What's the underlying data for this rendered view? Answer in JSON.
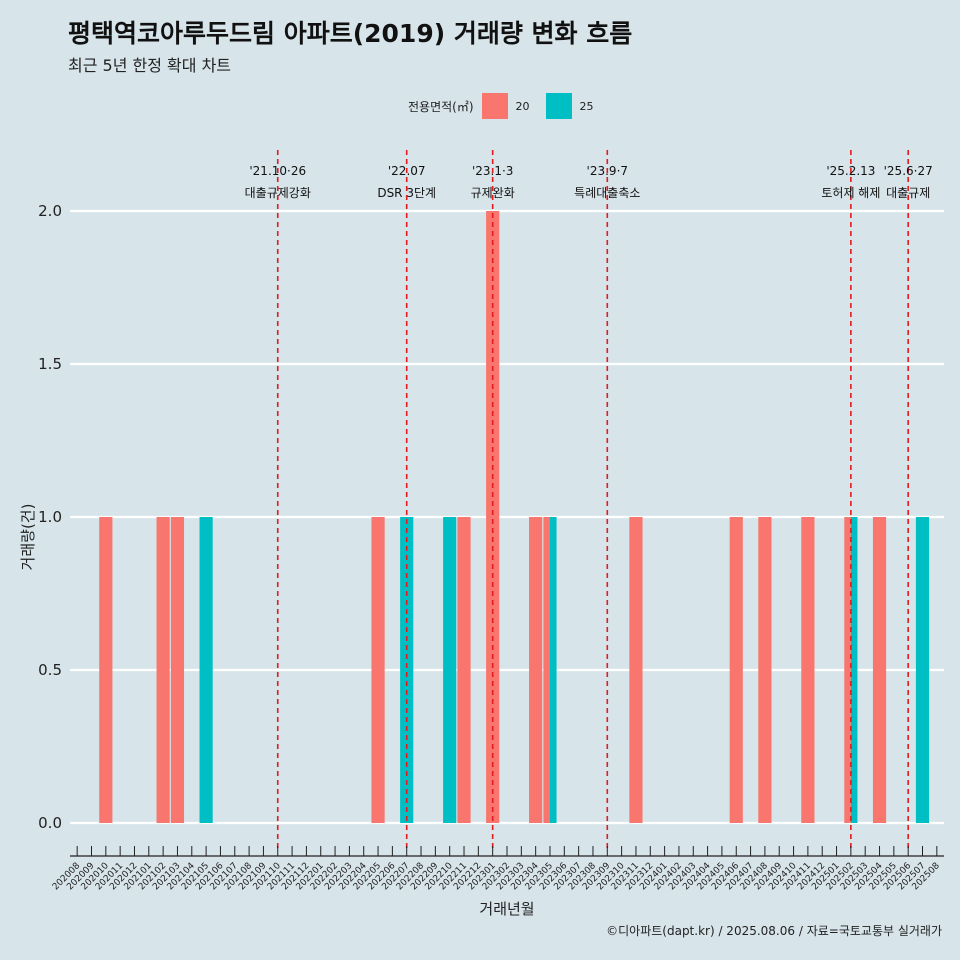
{
  "title": "평택역코아루두드림 아파트(2019) 거래량 변화 흐름",
  "subtitle": "최근 5년 한정 확대 차트",
  "caption": "©디아파트(dapt.kr) / 2025.08.06 / 자료=국토교통부 실거래가",
  "legend": {
    "title": "전용면적(㎡)",
    "items": [
      {
        "label": "20",
        "color": "#F8766D"
      },
      {
        "label": "25",
        "color": "#00BFC4"
      }
    ]
  },
  "chart_data": {
    "type": "bar",
    "xlabel": "거래년월",
    "ylabel": "거래량(건)",
    "ylim": [
      0,
      2
    ],
    "yticks": [
      "0.0",
      "0.5",
      "1.0",
      "1.5",
      "2.0"
    ],
    "grid": true,
    "legend_position": "top",
    "categories": [
      "202008",
      "202009",
      "202010",
      "202011",
      "202012",
      "202101",
      "202102",
      "202103",
      "202104",
      "202105",
      "202106",
      "202107",
      "202108",
      "202109",
      "202110",
      "202111",
      "202112",
      "202201",
      "202202",
      "202203",
      "202204",
      "202205",
      "202206",
      "202207",
      "202208",
      "202209",
      "202210",
      "202211",
      "202212",
      "202301",
      "202302",
      "202303",
      "202304",
      "202305",
      "202306",
      "202307",
      "202308",
      "202309",
      "202310",
      "202311",
      "202312",
      "202401",
      "202402",
      "202403",
      "202404",
      "202405",
      "202406",
      "202407",
      "202408",
      "202409",
      "202410",
      "202411",
      "202412",
      "202501",
      "202502",
      "202503",
      "202504",
      "202505",
      "202506",
      "202507",
      "202508"
    ],
    "series": [
      {
        "name": "20",
        "color": "#F8766D",
        "values": [
          {
            "x": "202010",
            "y": 1
          },
          {
            "x": "202102",
            "y": 1
          },
          {
            "x": "202103",
            "y": 1
          },
          {
            "x": "202205",
            "y": 1
          },
          {
            "x": "202211",
            "y": 1
          },
          {
            "x": "202301",
            "y": 2
          },
          {
            "x": "202304",
            "y": 1
          },
          {
            "x": "202305",
            "y": 1
          },
          {
            "x": "202311",
            "y": 1
          },
          {
            "x": "202406",
            "y": 1
          },
          {
            "x": "202408",
            "y": 1
          },
          {
            "x": "202411",
            "y": 1
          },
          {
            "x": "202502",
            "y": 1
          },
          {
            "x": "202504",
            "y": 1
          }
        ]
      },
      {
        "name": "25",
        "color": "#00BFC4",
        "values": [
          {
            "x": "202105",
            "y": 1
          },
          {
            "x": "202207",
            "y": 1
          },
          {
            "x": "202210",
            "y": 1
          },
          {
            "x": "202305",
            "y": 1
          },
          {
            "x": "202502",
            "y": 1
          },
          {
            "x": "202507",
            "y": 1
          }
        ]
      }
    ],
    "annotations": [
      {
        "x": "202110",
        "date": "'21.10·26",
        "label": "대출규제강화"
      },
      {
        "x": "202207",
        "date": "'22.07",
        "label": "DSR 3단계"
      },
      {
        "x": "202301",
        "date": "'23.1·3",
        "label": "규제완화"
      },
      {
        "x": "202309",
        "date": "'23.9·7",
        "label": "특례대출축소"
      },
      {
        "x": "202502",
        "date": "'25.2.13",
        "label": "토허제 해제"
      },
      {
        "x": "202506",
        "date": "'25.6·27",
        "label": "대출규제"
      }
    ],
    "annotation_line_color": "#e41a1c"
  }
}
